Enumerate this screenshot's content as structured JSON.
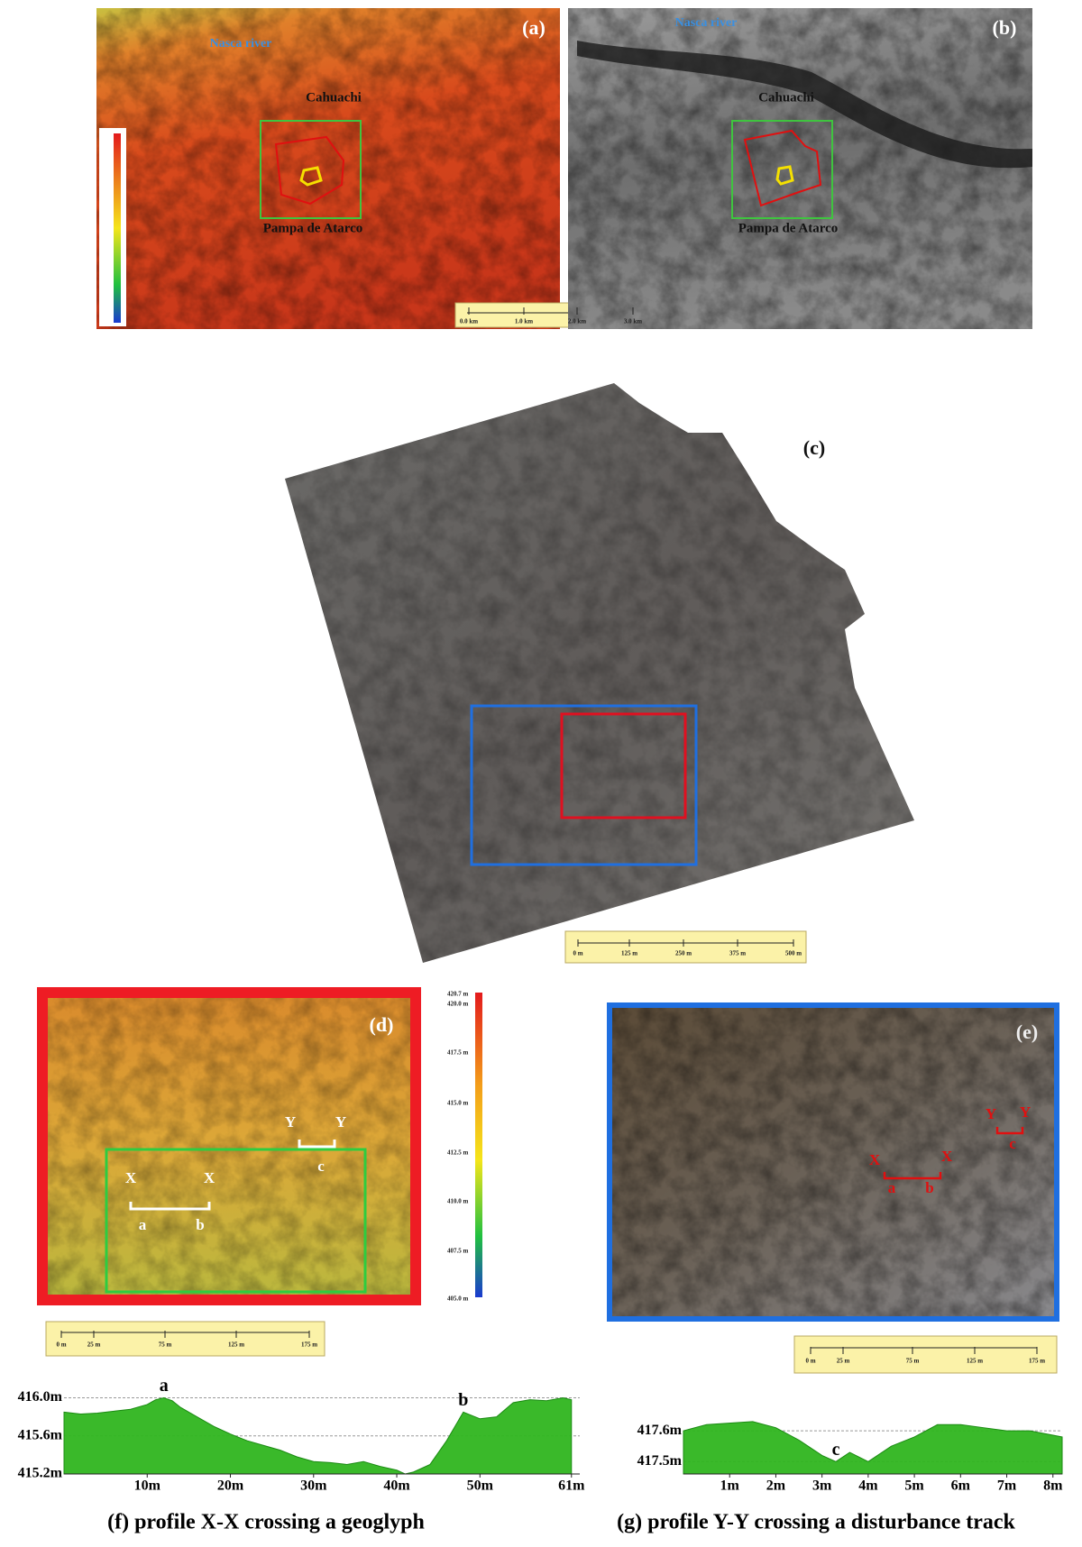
{
  "panels": {
    "a": {
      "label": "(a)",
      "river": "Nasca river",
      "site": "Cahuachi",
      "pampa": "Pampa de Atarco",
      "scale_bar": [
        "0.0 km",
        "1.0 km",
        "2.0 km",
        "3.0 km"
      ]
    },
    "b": {
      "label": "(b)",
      "river": "Nasca river",
      "site": "Cahuachi",
      "pampa": "Pampa de Atarco"
    },
    "c": {
      "label": "(c)",
      "scale_bar": [
        "0 m",
        "125 m",
        "250 m",
        "375 m",
        "500 m"
      ]
    },
    "d": {
      "label": "(d)",
      "markers": [
        "Y",
        "Y",
        "c",
        "X",
        "X",
        "a",
        "b"
      ],
      "colorbar": [
        "420.7 m",
        "420.0 m",
        "417.5 m",
        "415.0 m",
        "412.5 m",
        "410.0 m",
        "407.5 m",
        "405.0 m"
      ],
      "scale_bar": [
        "0 m",
        "25 m",
        "75 m",
        "125 m",
        "175 m"
      ]
    },
    "e": {
      "label": "(e)",
      "markers": [
        "X",
        "X",
        "a",
        "b",
        "Y",
        "Y",
        "c"
      ],
      "scale_bar": [
        "0 m",
        "25 m",
        "75 m",
        "125 m",
        "175 m"
      ]
    }
  },
  "chart_data": [
    {
      "type": "area",
      "title": "(f)  profile X-X crossing a geoglyph",
      "color": "#2fb51f",
      "grid": true,
      "x": [
        0,
        2,
        4,
        6,
        8,
        10,
        11,
        12,
        13,
        14,
        16,
        18,
        20,
        22,
        24,
        26,
        28,
        30,
        32,
        34,
        36,
        38,
        40,
        41,
        42,
        44,
        46,
        48,
        50,
        52,
        54,
        56,
        58,
        60,
        61
      ],
      "values": [
        415.85,
        415.83,
        415.84,
        415.86,
        415.88,
        415.93,
        415.98,
        416.0,
        415.97,
        415.9,
        415.8,
        415.7,
        415.62,
        415.55,
        415.5,
        415.45,
        415.38,
        415.33,
        415.32,
        415.3,
        415.33,
        415.28,
        415.24,
        415.2,
        415.22,
        415.3,
        415.55,
        415.85,
        415.78,
        415.8,
        415.95,
        415.98,
        415.97,
        416.0,
        415.98
      ],
      "xlim": [
        0,
        62
      ],
      "ylim": [
        415.2,
        416.1
      ],
      "xticks": [
        {
          "value": 10,
          "label": "10m"
        },
        {
          "value": 20,
          "label": "20m"
        },
        {
          "value": 30,
          "label": "30m"
        },
        {
          "value": 40,
          "label": "40m"
        },
        {
          "value": 50,
          "label": "50m"
        },
        {
          "value": 61,
          "label": "61m"
        }
      ],
      "yticks": [
        {
          "value": 415.2,
          "label": "415.2m"
        },
        {
          "value": 415.6,
          "label": "415.6m"
        },
        {
          "value": 416.0,
          "label": "416.0m"
        }
      ],
      "annotations": [
        {
          "text": "a",
          "x": 12,
          "y": 416.0
        },
        {
          "text": "b",
          "x": 48,
          "y": 415.85
        }
      ]
    },
    {
      "type": "area",
      "title": "(g) profile Y-Y crossing a disturbance track",
      "color": "#2fb51f",
      "grid": true,
      "x": [
        0,
        0.5,
        1.5,
        2,
        2.5,
        3,
        3.3,
        3.6,
        4,
        4.5,
        5,
        5.5,
        6,
        6.5,
        7,
        7.5,
        8.2
      ],
      "values": [
        417.6,
        417.62,
        417.63,
        417.61,
        417.57,
        417.52,
        417.5,
        417.53,
        417.5,
        417.55,
        417.58,
        417.62,
        417.62,
        417.61,
        417.6,
        417.6,
        417.58
      ],
      "xlim": [
        0,
        8.2
      ],
      "ylim": [
        417.46,
        417.65
      ],
      "xticks": [
        {
          "value": 1,
          "label": "1m"
        },
        {
          "value": 2,
          "label": "2m"
        },
        {
          "value": 3,
          "label": "3m"
        },
        {
          "value": 4,
          "label": "4m"
        },
        {
          "value": 5,
          "label": "5m"
        },
        {
          "value": 6,
          "label": "6m"
        },
        {
          "value": 7,
          "label": "7m"
        },
        {
          "value": 8,
          "label": "8m"
        }
      ],
      "yticks": [
        {
          "value": 417.5,
          "label": "417.5m"
        },
        {
          "value": 417.6,
          "label": "417.6m"
        }
      ],
      "annotations": [
        {
          "text": "c",
          "x": 3.3,
          "y": 417.5
        }
      ]
    }
  ]
}
